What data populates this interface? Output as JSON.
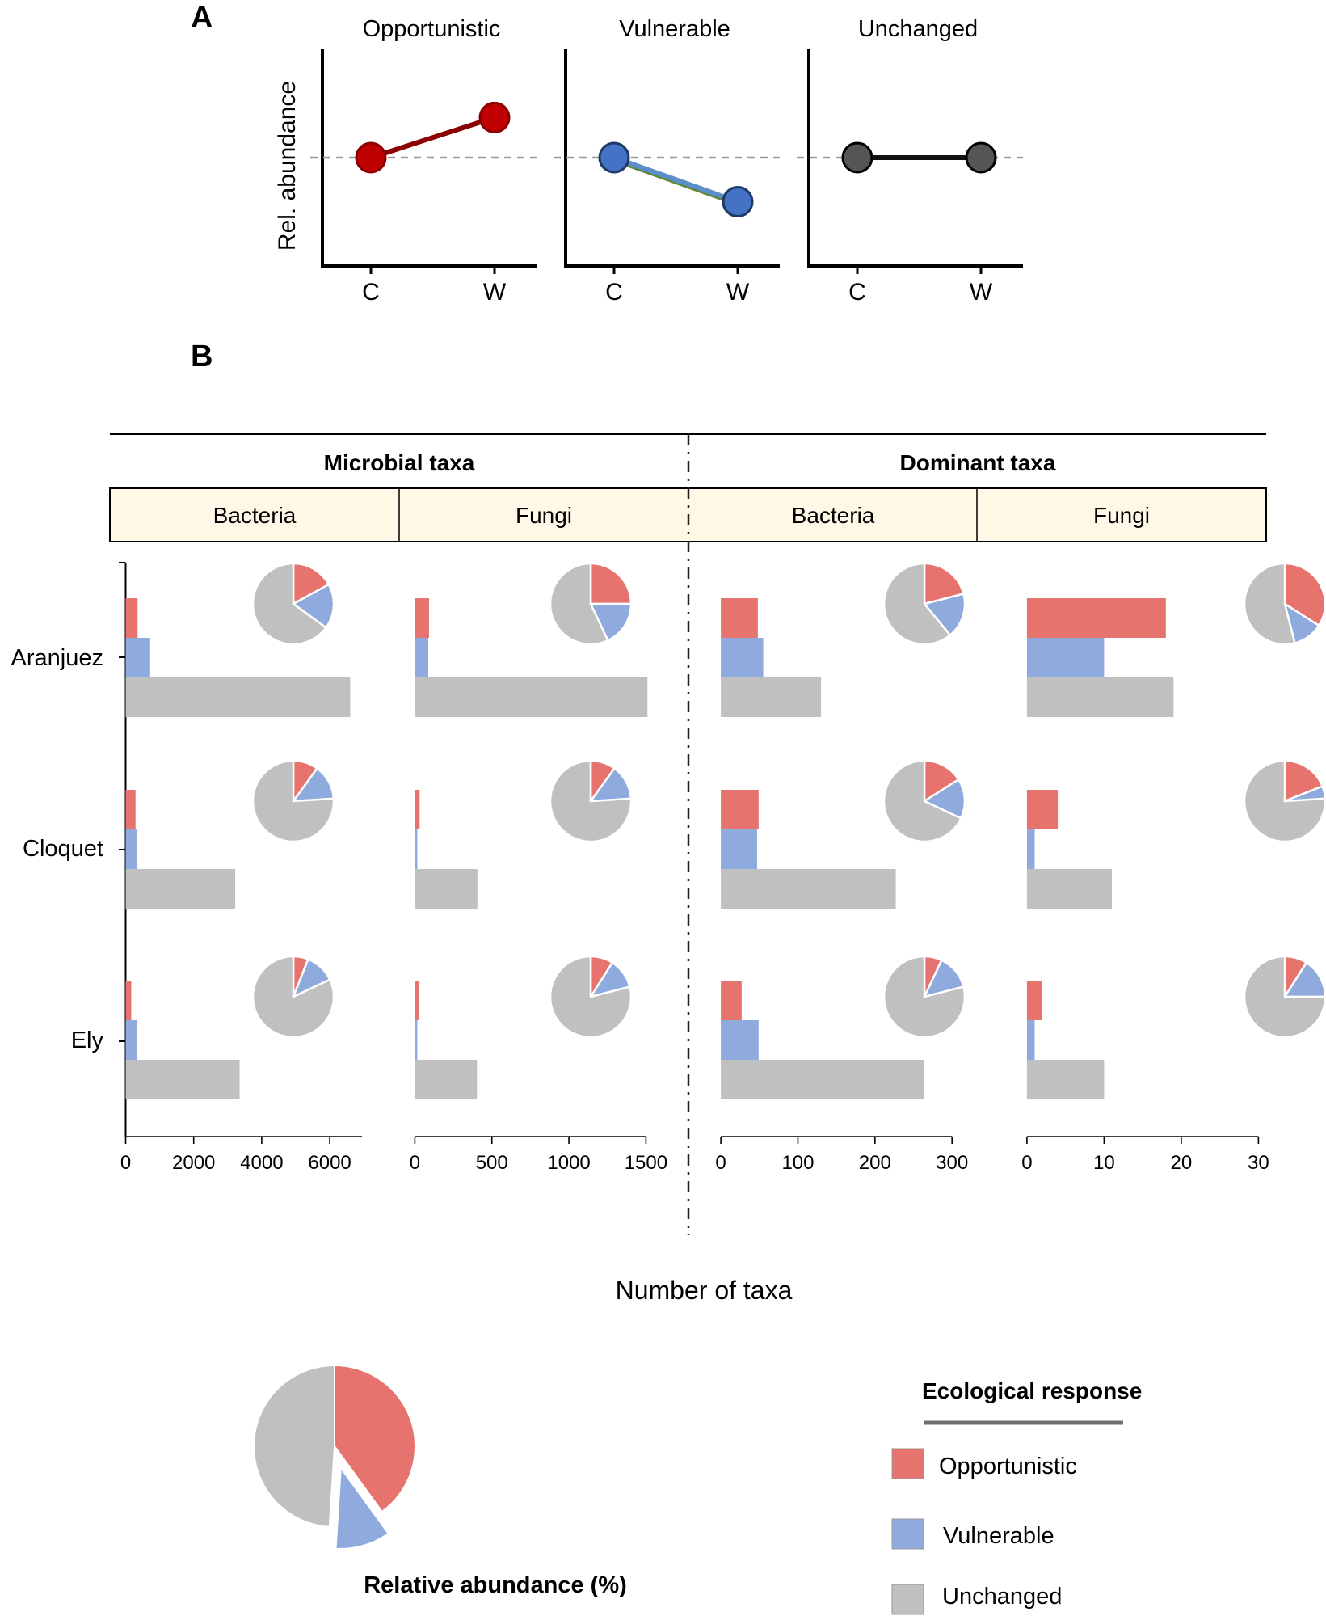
{
  "panel_labels": {
    "a": "A",
    "b": "B"
  },
  "colors": {
    "opportunistic": "#E6736D",
    "vulnerable": "#8FAADC",
    "unchanged": "#C0C0C0",
    "opp_point": "#C00000",
    "opp_line": "#8B0000",
    "vul_point": "#4472C4",
    "unch_point": "#555555",
    "header_fill": "#FFF8E7",
    "legend_rule": "#707070"
  },
  "chart_data": [
    {
      "id": "panel-a",
      "type": "line",
      "title": "",
      "ylabel": "Rel. abundance",
      "xlabel": "",
      "x": [
        "C",
        "W"
      ],
      "baseline": "dashed reference line at control level",
      "ylim": [
        0,
        1
      ],
      "series": [
        {
          "name": "Opportunistic",
          "values": [
            0.5,
            0.7
          ]
        },
        {
          "name": "Vulnerable",
          "values": [
            0.5,
            0.28
          ]
        },
        {
          "name": "Unchanged",
          "values": [
            0.5,
            0.5
          ]
        }
      ]
    },
    {
      "id": "panel-b",
      "type": "bar",
      "orientation": "horizontal",
      "xlabel": "Number of taxa",
      "ylabel": "",
      "categories": [
        "Aranjuez",
        "Cloquet",
        "Ely"
      ],
      "response_types": [
        "Opportunistic",
        "Vulnerable",
        "Unchanged"
      ],
      "groups": [
        {
          "name": "Microbial taxa",
          "subpanels": [
            "Bacteria",
            "Fungi"
          ]
        },
        {
          "name": "Dominant taxa",
          "subpanels": [
            "Bacteria",
            "Fungi"
          ]
        }
      ],
      "subpanels": [
        {
          "group": "Microbial taxa",
          "name": "Bacteria",
          "xlim": [
            0,
            7000
          ],
          "ticks": [
            0,
            2000,
            4000,
            6000
          ],
          "series": [
            {
              "name": "Opportunistic",
              "values": [
                350,
                290,
                165
              ]
            },
            {
              "name": "Vulnerable",
              "values": [
                720,
                320,
                320
              ]
            },
            {
              "name": "Unchanged",
              "values": [
                6600,
                3220,
                3350
              ]
            }
          ],
          "pies": [
            {
              "site": "Aranjuez",
              "opportunistic": 17,
              "vulnerable": 18,
              "unchanged": 65
            },
            {
              "site": "Cloquet",
              "opportunistic": 10,
              "vulnerable": 14,
              "unchanged": 76
            },
            {
              "site": "Ely",
              "opportunistic": 6,
              "vulnerable": 12,
              "unchanged": 82
            }
          ]
        },
        {
          "group": "Microbial taxa",
          "name": "Fungi",
          "xlim": [
            0,
            1500
          ],
          "ticks": [
            0,
            500,
            1000,
            1500
          ],
          "series": [
            {
              "name": "Opportunistic",
              "values": [
                92,
                31,
                25
              ]
            },
            {
              "name": "Vulnerable",
              "values": [
                87,
                16,
                16
              ]
            },
            {
              "name": "Unchanged",
              "values": [
                1510,
                406,
                403
              ]
            }
          ],
          "pies": [
            {
              "site": "Aranjuez",
              "opportunistic": 25,
              "vulnerable": 18,
              "unchanged": 57
            },
            {
              "site": "Cloquet",
              "opportunistic": 10,
              "vulnerable": 14,
              "unchanged": 76
            },
            {
              "site": "Ely",
              "opportunistic": 9,
              "vulnerable": 12,
              "unchanged": 79
            }
          ]
        },
        {
          "group": "Dominant taxa",
          "name": "Bacteria",
          "xlim": [
            0,
            300
          ],
          "ticks": [
            0,
            100,
            200,
            300
          ],
          "series": [
            {
              "name": "Opportunistic",
              "values": [
                48,
                49,
                27
              ]
            },
            {
              "name": "Vulnerable",
              "values": [
                55,
                47,
                49
              ]
            },
            {
              "name": "Unchanged",
              "values": [
                130,
                227,
                264
              ]
            }
          ],
          "pies": [
            {
              "site": "Aranjuez",
              "opportunistic": 21,
              "vulnerable": 18,
              "unchanged": 61
            },
            {
              "site": "Cloquet",
              "opportunistic": 16,
              "vulnerable": 16,
              "unchanged": 68
            },
            {
              "site": "Ely",
              "opportunistic": 7,
              "vulnerable": 14,
              "unchanged": 79
            }
          ]
        },
        {
          "group": "Dominant taxa",
          "name": "Fungi",
          "xlim": [
            0,
            30
          ],
          "ticks": [
            0,
            10,
            20,
            30
          ],
          "series": [
            {
              "name": "Opportunistic",
              "values": [
                18,
                4,
                2
              ]
            },
            {
              "name": "Vulnerable",
              "values": [
                10,
                1,
                1
              ]
            },
            {
              "name": "Unchanged",
              "values": [
                19,
                11,
                10
              ]
            }
          ],
          "pies": [
            {
              "site": "Aranjuez",
              "opportunistic": 34,
              "vulnerable": 12,
              "unchanged": 54
            },
            {
              "site": "Cloquet",
              "opportunistic": 19,
              "vulnerable": 5,
              "unchanged": 76
            },
            {
              "site": "Ely",
              "opportunistic": 9,
              "vulnerable": 16,
              "unchanged": 75
            }
          ]
        }
      ]
    },
    {
      "id": "legend-pie",
      "type": "pie",
      "title": "Relative abundance (%)",
      "labels": [
        "Opportunistic",
        "Vulnerable",
        "Unchanged"
      ],
      "values": [
        40,
        11,
        49
      ],
      "exploded": [
        "Vulnerable"
      ]
    }
  ],
  "panel_a": {
    "titles": [
      "Opportunistic",
      "Vulnerable",
      "Unchanged"
    ],
    "ylabel": "Rel. abundance",
    "xticks": [
      "C",
      "W"
    ]
  },
  "panel_b": {
    "group_titles": [
      "Microbial taxa",
      "Dominant taxa"
    ],
    "subpanel_titles": [
      "Bacteria",
      "Fungi",
      "Bacteria",
      "Fungi"
    ],
    "row_labels": [
      "Aranjuez",
      "Cloquet",
      "Ely"
    ],
    "xaxis_title": "Number of taxa"
  },
  "legend": {
    "title": "Ecological response",
    "items": [
      "Opportunistic",
      "Vulnerable",
      "Unchanged"
    ],
    "pie_caption": "Relative abundance (%)"
  }
}
